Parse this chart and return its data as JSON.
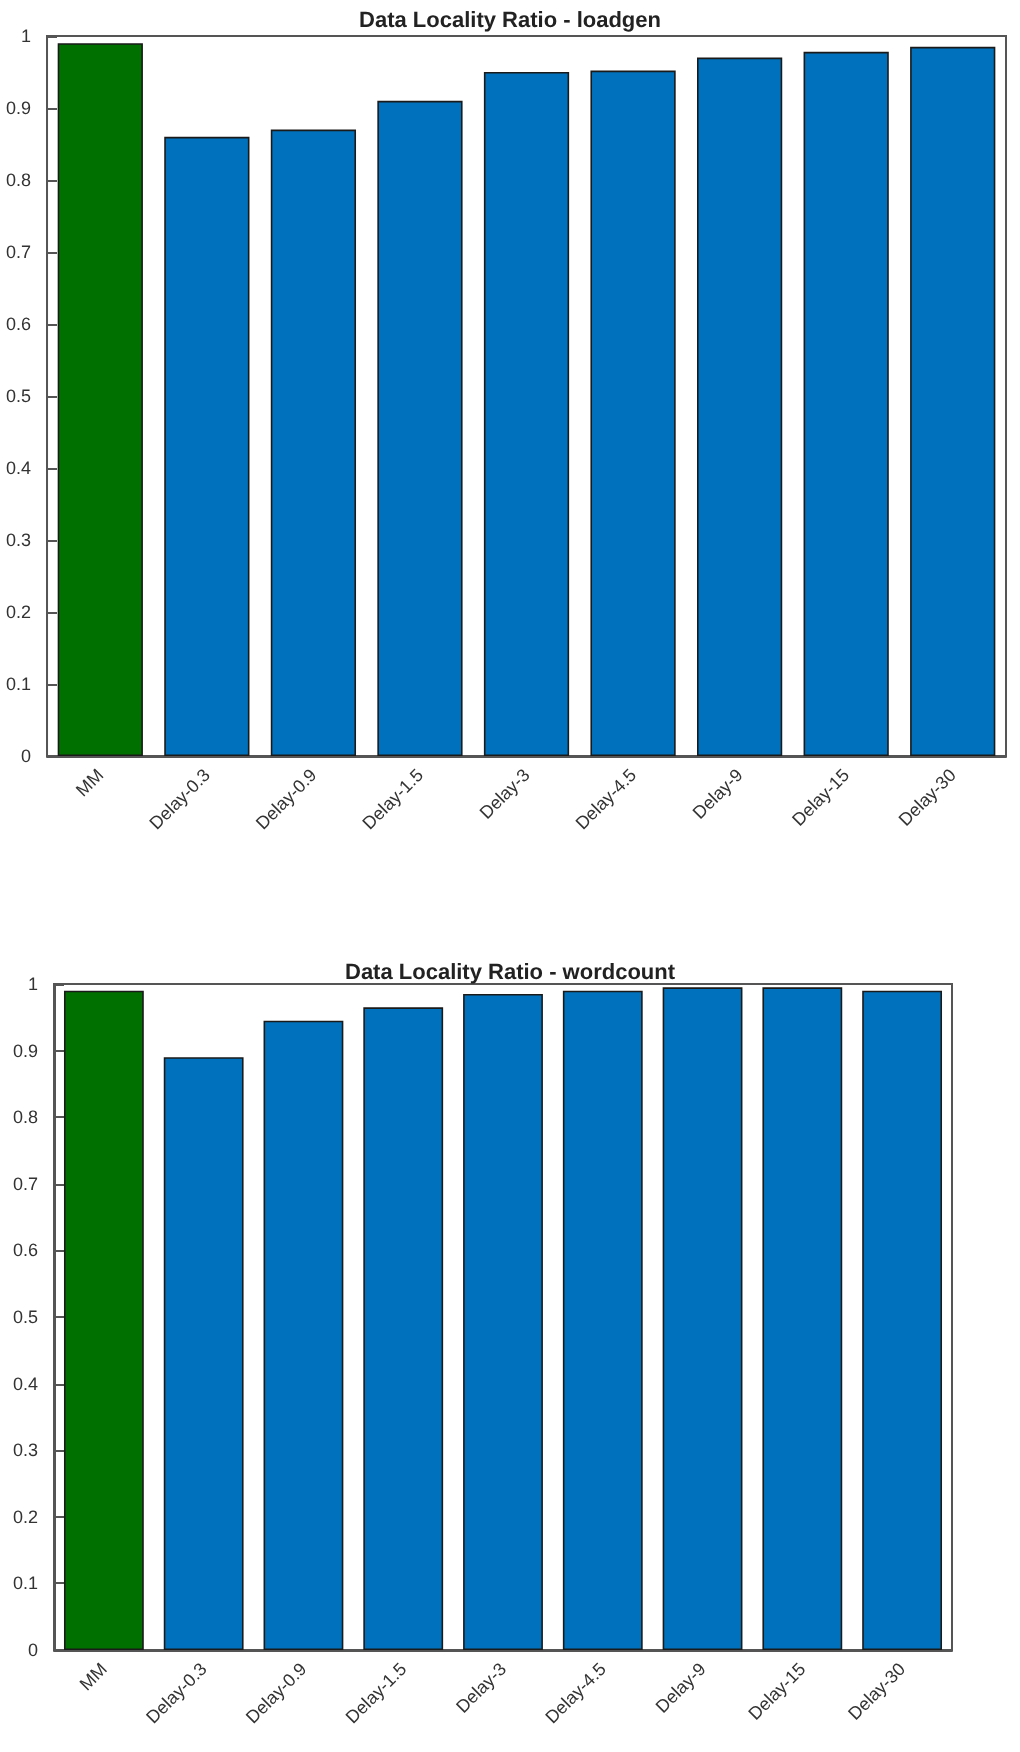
{
  "chart_data": [
    {
      "type": "bar",
      "title": "Data Locality Ratio - loadgen",
      "categories": [
        "MM",
        "Delay-0.3",
        "Delay-0.9",
        "Delay-1.5",
        "Delay-3",
        "Delay-4.5",
        "Delay-9",
        "Delay-15",
        "Delay-30"
      ],
      "values": [
        0.99,
        0.86,
        0.87,
        0.91,
        0.95,
        0.952,
        0.97,
        0.978,
        0.985
      ],
      "colors": [
        "#007000",
        "#0072bd",
        "#0072bd",
        "#0072bd",
        "#0072bd",
        "#0072bd",
        "#0072bd",
        "#0072bd",
        "#0072bd"
      ],
      "ylim": [
        0,
        1
      ],
      "yticks": [
        0,
        0.1,
        0.2,
        0.3,
        0.4,
        0.5,
        0.6,
        0.7,
        0.8,
        0.9,
        1
      ],
      "grid": false
    },
    {
      "type": "bar",
      "title": "Data Locality Ratio - wordcount",
      "categories": [
        "MM",
        "Delay-0.3",
        "Delay-0.9",
        "Delay-1.5",
        "Delay-3",
        "Delay-4.5",
        "Delay-9",
        "Delay-15",
        "Delay-30"
      ],
      "values": [
        0.99,
        0.89,
        0.945,
        0.965,
        0.985,
        0.99,
        0.995,
        0.995,
        0.99
      ],
      "colors": [
        "#007000",
        "#0072bd",
        "#0072bd",
        "#0072bd",
        "#0072bd",
        "#0072bd",
        "#0072bd",
        "#0072bd",
        "#0072bd"
      ],
      "ylim": [
        0,
        1
      ],
      "yticks": [
        0,
        0.1,
        0.2,
        0.3,
        0.4,
        0.5,
        0.6,
        0.7,
        0.8,
        0.9,
        1
      ],
      "grid": false
    }
  ]
}
